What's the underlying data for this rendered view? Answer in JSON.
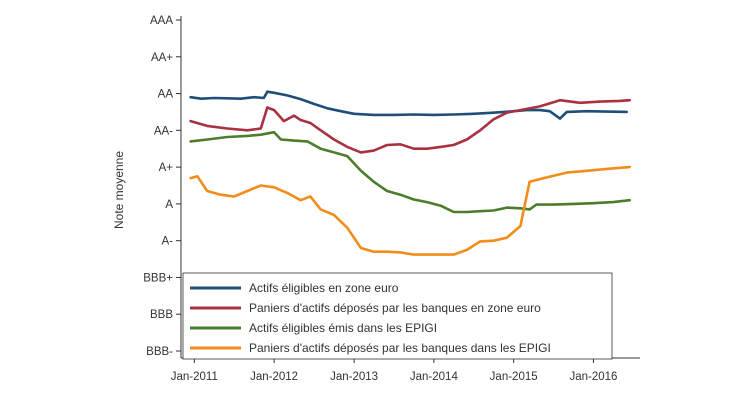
{
  "chart_data": {
    "type": "line",
    "title": "",
    "xlabel": "",
    "ylabel": "Note moyenne",
    "grid": false,
    "legend_position": "bottom-inside",
    "x_ticks": [
      "Jan-2011",
      "Jan-2012",
      "Jan-2013",
      "Jan-2014",
      "Jan-2015",
      "Jan-2016"
    ],
    "y_ticks": [
      "BBB-",
      "BBB",
      "BBB+",
      "A-",
      "A",
      "A+",
      "AA-",
      "AA",
      "AA+",
      "AAA"
    ],
    "y_scale_note": "notch scale: BBB-=1 ... AAA=10",
    "xlim": [
      "2010-11-01",
      "2016-08-01"
    ],
    "ylim": [
      1,
      10
    ],
    "series": [
      {
        "name": "Actifs éligibles en zone euro",
        "color": "#1f4e79",
        "points": [
          [
            "2010-12-15",
            7.9
          ],
          [
            "2011-02-01",
            7.86
          ],
          [
            "2011-04-01",
            7.88
          ],
          [
            "2011-06-01",
            7.87
          ],
          [
            "2011-08-01",
            7.86
          ],
          [
            "2011-10-01",
            7.9
          ],
          [
            "2011-11-15",
            7.88
          ],
          [
            "2011-12-01",
            8.05
          ],
          [
            "2012-01-01",
            8.02
          ],
          [
            "2012-03-01",
            7.95
          ],
          [
            "2012-05-01",
            7.85
          ],
          [
            "2012-07-01",
            7.72
          ],
          [
            "2012-09-01",
            7.6
          ],
          [
            "2012-11-01",
            7.52
          ],
          [
            "2013-01-01",
            7.45
          ],
          [
            "2013-04-01",
            7.42
          ],
          [
            "2013-07-01",
            7.42
          ],
          [
            "2013-10-01",
            7.43
          ],
          [
            "2014-01-01",
            7.42
          ],
          [
            "2014-04-01",
            7.43
          ],
          [
            "2014-07-01",
            7.45
          ],
          [
            "2014-10-01",
            7.48
          ],
          [
            "2015-01-01",
            7.52
          ],
          [
            "2015-03-01",
            7.55
          ],
          [
            "2015-05-01",
            7.55
          ],
          [
            "2015-06-15",
            7.52
          ],
          [
            "2015-08-01",
            7.32
          ],
          [
            "2015-09-01",
            7.5
          ],
          [
            "2015-12-01",
            7.52
          ],
          [
            "2016-03-01",
            7.51
          ],
          [
            "2016-06-01",
            7.5
          ]
        ]
      },
      {
        "name": "Paniers d'actifs déposés par les banques en zone euro",
        "color": "#a83240",
        "points": [
          [
            "2010-12-15",
            7.25
          ],
          [
            "2011-03-01",
            7.12
          ],
          [
            "2011-06-01",
            7.05
          ],
          [
            "2011-09-01",
            7.0
          ],
          [
            "2011-11-01",
            7.05
          ],
          [
            "2011-12-01",
            7.62
          ],
          [
            "2012-01-01",
            7.55
          ],
          [
            "2012-02-15",
            7.25
          ],
          [
            "2012-04-01",
            7.4
          ],
          [
            "2012-05-01",
            7.28
          ],
          [
            "2012-06-15",
            7.2
          ],
          [
            "2012-08-01",
            7.0
          ],
          [
            "2012-10-01",
            6.75
          ],
          [
            "2012-12-01",
            6.55
          ],
          [
            "2013-02-01",
            6.4
          ],
          [
            "2013-04-01",
            6.45
          ],
          [
            "2013-06-01",
            6.6
          ],
          [
            "2013-08-01",
            6.62
          ],
          [
            "2013-10-01",
            6.5
          ],
          [
            "2013-12-01",
            6.5
          ],
          [
            "2014-02-01",
            6.55
          ],
          [
            "2014-04-01",
            6.6
          ],
          [
            "2014-06-01",
            6.75
          ],
          [
            "2014-08-01",
            7.0
          ],
          [
            "2014-10-01",
            7.3
          ],
          [
            "2014-12-01",
            7.48
          ],
          [
            "2015-02-01",
            7.55
          ],
          [
            "2015-05-01",
            7.65
          ],
          [
            "2015-08-01",
            7.82
          ],
          [
            "2015-11-01",
            7.75
          ],
          [
            "2016-02-01",
            7.78
          ],
          [
            "2016-05-01",
            7.8
          ],
          [
            "2016-06-15",
            7.82
          ]
        ]
      },
      {
        "name": "Actifs éligibles émis dans les EPIGI",
        "color": "#4b7d2d",
        "points": [
          [
            "2010-12-15",
            6.7
          ],
          [
            "2011-03-01",
            6.75
          ],
          [
            "2011-06-01",
            6.82
          ],
          [
            "2011-09-01",
            6.85
          ],
          [
            "2011-11-01",
            6.88
          ],
          [
            "2012-01-01",
            6.95
          ],
          [
            "2012-02-01",
            6.75
          ],
          [
            "2012-04-01",
            6.72
          ],
          [
            "2012-06-01",
            6.7
          ],
          [
            "2012-08-01",
            6.5
          ],
          [
            "2012-10-01",
            6.4
          ],
          [
            "2012-12-01",
            6.3
          ],
          [
            "2013-02-01",
            5.9
          ],
          [
            "2013-04-01",
            5.6
          ],
          [
            "2013-06-01",
            5.35
          ],
          [
            "2013-08-01",
            5.25
          ],
          [
            "2013-10-01",
            5.12
          ],
          [
            "2013-12-01",
            5.05
          ],
          [
            "2014-02-01",
            4.95
          ],
          [
            "2014-04-01",
            4.78
          ],
          [
            "2014-06-01",
            4.78
          ],
          [
            "2014-08-01",
            4.8
          ],
          [
            "2014-10-01",
            4.82
          ],
          [
            "2014-12-01",
            4.9
          ],
          [
            "2015-02-01",
            4.88
          ],
          [
            "2015-03-15",
            4.85
          ],
          [
            "2015-04-15",
            4.98
          ],
          [
            "2015-07-01",
            4.98
          ],
          [
            "2015-10-01",
            5.0
          ],
          [
            "2016-01-01",
            5.02
          ],
          [
            "2016-04-01",
            5.05
          ],
          [
            "2016-06-15",
            5.1
          ]
        ]
      },
      {
        "name": "Paniers d'actifs déposés par les banques dans les EPIGI",
        "color": "#f28c1a",
        "points": [
          [
            "2010-12-15",
            5.7
          ],
          [
            "2011-01-15",
            5.75
          ],
          [
            "2011-03-01",
            5.35
          ],
          [
            "2011-05-01",
            5.25
          ],
          [
            "2011-07-01",
            5.2
          ],
          [
            "2011-09-01",
            5.35
          ],
          [
            "2011-11-01",
            5.5
          ],
          [
            "2012-01-01",
            5.45
          ],
          [
            "2012-03-01",
            5.3
          ],
          [
            "2012-05-01",
            5.1
          ],
          [
            "2012-06-15",
            5.2
          ],
          [
            "2012-08-01",
            4.85
          ],
          [
            "2012-10-01",
            4.7
          ],
          [
            "2012-12-01",
            4.35
          ],
          [
            "2013-02-01",
            3.8
          ],
          [
            "2013-04-01",
            3.7
          ],
          [
            "2013-06-01",
            3.7
          ],
          [
            "2013-08-01",
            3.68
          ],
          [
            "2013-10-01",
            3.62
          ],
          [
            "2014-01-01",
            3.62
          ],
          [
            "2014-04-01",
            3.62
          ],
          [
            "2014-06-01",
            3.75
          ],
          [
            "2014-08-01",
            3.98
          ],
          [
            "2014-10-01",
            4.0
          ],
          [
            "2014-12-01",
            4.08
          ],
          [
            "2015-02-01",
            4.4
          ],
          [
            "2015-03-15",
            5.6
          ],
          [
            "2015-06-01",
            5.72
          ],
          [
            "2015-09-01",
            5.85
          ],
          [
            "2015-12-01",
            5.9
          ],
          [
            "2016-03-01",
            5.95
          ],
          [
            "2016-06-15",
            6.0
          ]
        ]
      }
    ]
  }
}
